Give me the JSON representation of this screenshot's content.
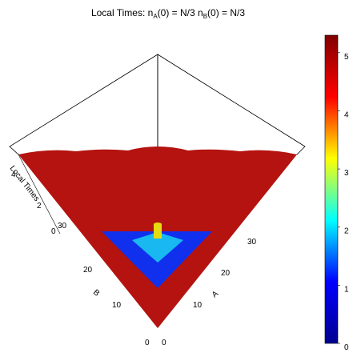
{
  "chart_data": {
    "type": "heatmap",
    "title": "Local Times: n_A(0) = N/3 n_B(0) = N/3",
    "title_parts": {
      "prefix": "Local Times: n",
      "sub1": "A",
      "mid": "(0) = N/3 n",
      "sub2": "B",
      "suffix": "(0) = N/3"
    },
    "render": "3d-perspective-surface",
    "axes": {
      "A": {
        "label": "A",
        "range": [
          0,
          35
        ],
        "ticks": [
          "0",
          "10",
          "20",
          "30"
        ]
      },
      "B": {
        "label": "B",
        "range": [
          0,
          35
        ],
        "ticks": [
          "0",
          "10",
          "20",
          "30"
        ]
      },
      "z": {
        "label": "Local Times",
        "range": [
          0,
          5.3
        ],
        "ticks": [
          "0",
          "2",
          "4"
        ]
      }
    },
    "surface": {
      "description_values": {
        "outside_inner_region": 5.3,
        "inner_triangle_region": 0.1,
        "inner_triangle_extent": {
          "A": [
            0,
            26
          ],
          "B": [
            0,
            26
          ]
        },
        "center_cone": 0.5,
        "peak": {
          "A": 13,
          "B": 13,
          "value": 3.2
        }
      }
    },
    "colorbar": {
      "range": [
        0,
        5.3
      ],
      "ticks": [
        "0",
        "1",
        "2",
        "3",
        "4",
        "5"
      ],
      "colormap": "jet",
      "stops": [
        "#00008f",
        "#0000ff",
        "#00ffff",
        "#ffff00",
        "#ff0000",
        "#800000"
      ]
    },
    "colors": {
      "high": "#b4130f",
      "low": "#1030ee",
      "mid": "#19b8f0",
      "peak": "#e4dc10"
    },
    "grid": false
  }
}
